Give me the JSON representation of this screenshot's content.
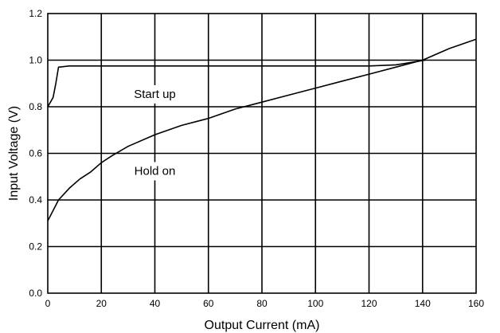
{
  "chart_data": {
    "type": "line",
    "title": "",
    "xlabel": "Output Current (mA)",
    "ylabel": "Input Voltage (V)",
    "xlim": [
      0,
      160
    ],
    "ylim": [
      0.0,
      1.2
    ],
    "grid": true,
    "x_ticks": [
      0,
      20,
      40,
      60,
      80,
      100,
      120,
      140,
      160
    ],
    "x_tick_labels": [
      "0",
      "20",
      "40",
      "60",
      "80",
      "100",
      "120",
      "140",
      "160"
    ],
    "y_ticks": [
      0.0,
      0.2,
      0.4,
      0.6,
      0.8,
      1.0,
      1.2
    ],
    "y_tick_labels": [
      "0.0",
      "0.2",
      "0.4",
      "0.6",
      "0.8",
      "1.0",
      "1.2"
    ],
    "series": [
      {
        "label": "Start up",
        "x": [
          0,
          1,
          2,
          3,
          4,
          8,
          20,
          40,
          60,
          80,
          100,
          120,
          130,
          141
        ],
        "y": [
          0.8,
          0.82,
          0.84,
          0.9,
          0.97,
          0.975,
          0.975,
          0.975,
          0.975,
          0.975,
          0.975,
          0.975,
          0.98,
          1.0
        ]
      },
      {
        "label": "Hold on",
        "x": [
          0,
          4,
          8,
          12,
          16,
          20,
          24,
          30,
          40,
          50,
          60,
          70,
          80,
          90,
          100,
          110,
          120,
          130,
          140,
          150,
          160
        ],
        "y": [
          0.31,
          0.4,
          0.45,
          0.49,
          0.52,
          0.56,
          0.59,
          0.63,
          0.68,
          0.72,
          0.75,
          0.79,
          0.82,
          0.85,
          0.88,
          0.91,
          0.94,
          0.97,
          1.0,
          1.05,
          1.09
        ]
      }
    ],
    "annotations": [
      {
        "text": "Start up",
        "x": 40,
        "y": 0.855
      },
      {
        "text": "Hold on",
        "x": 40,
        "y": 0.525
      }
    ]
  }
}
